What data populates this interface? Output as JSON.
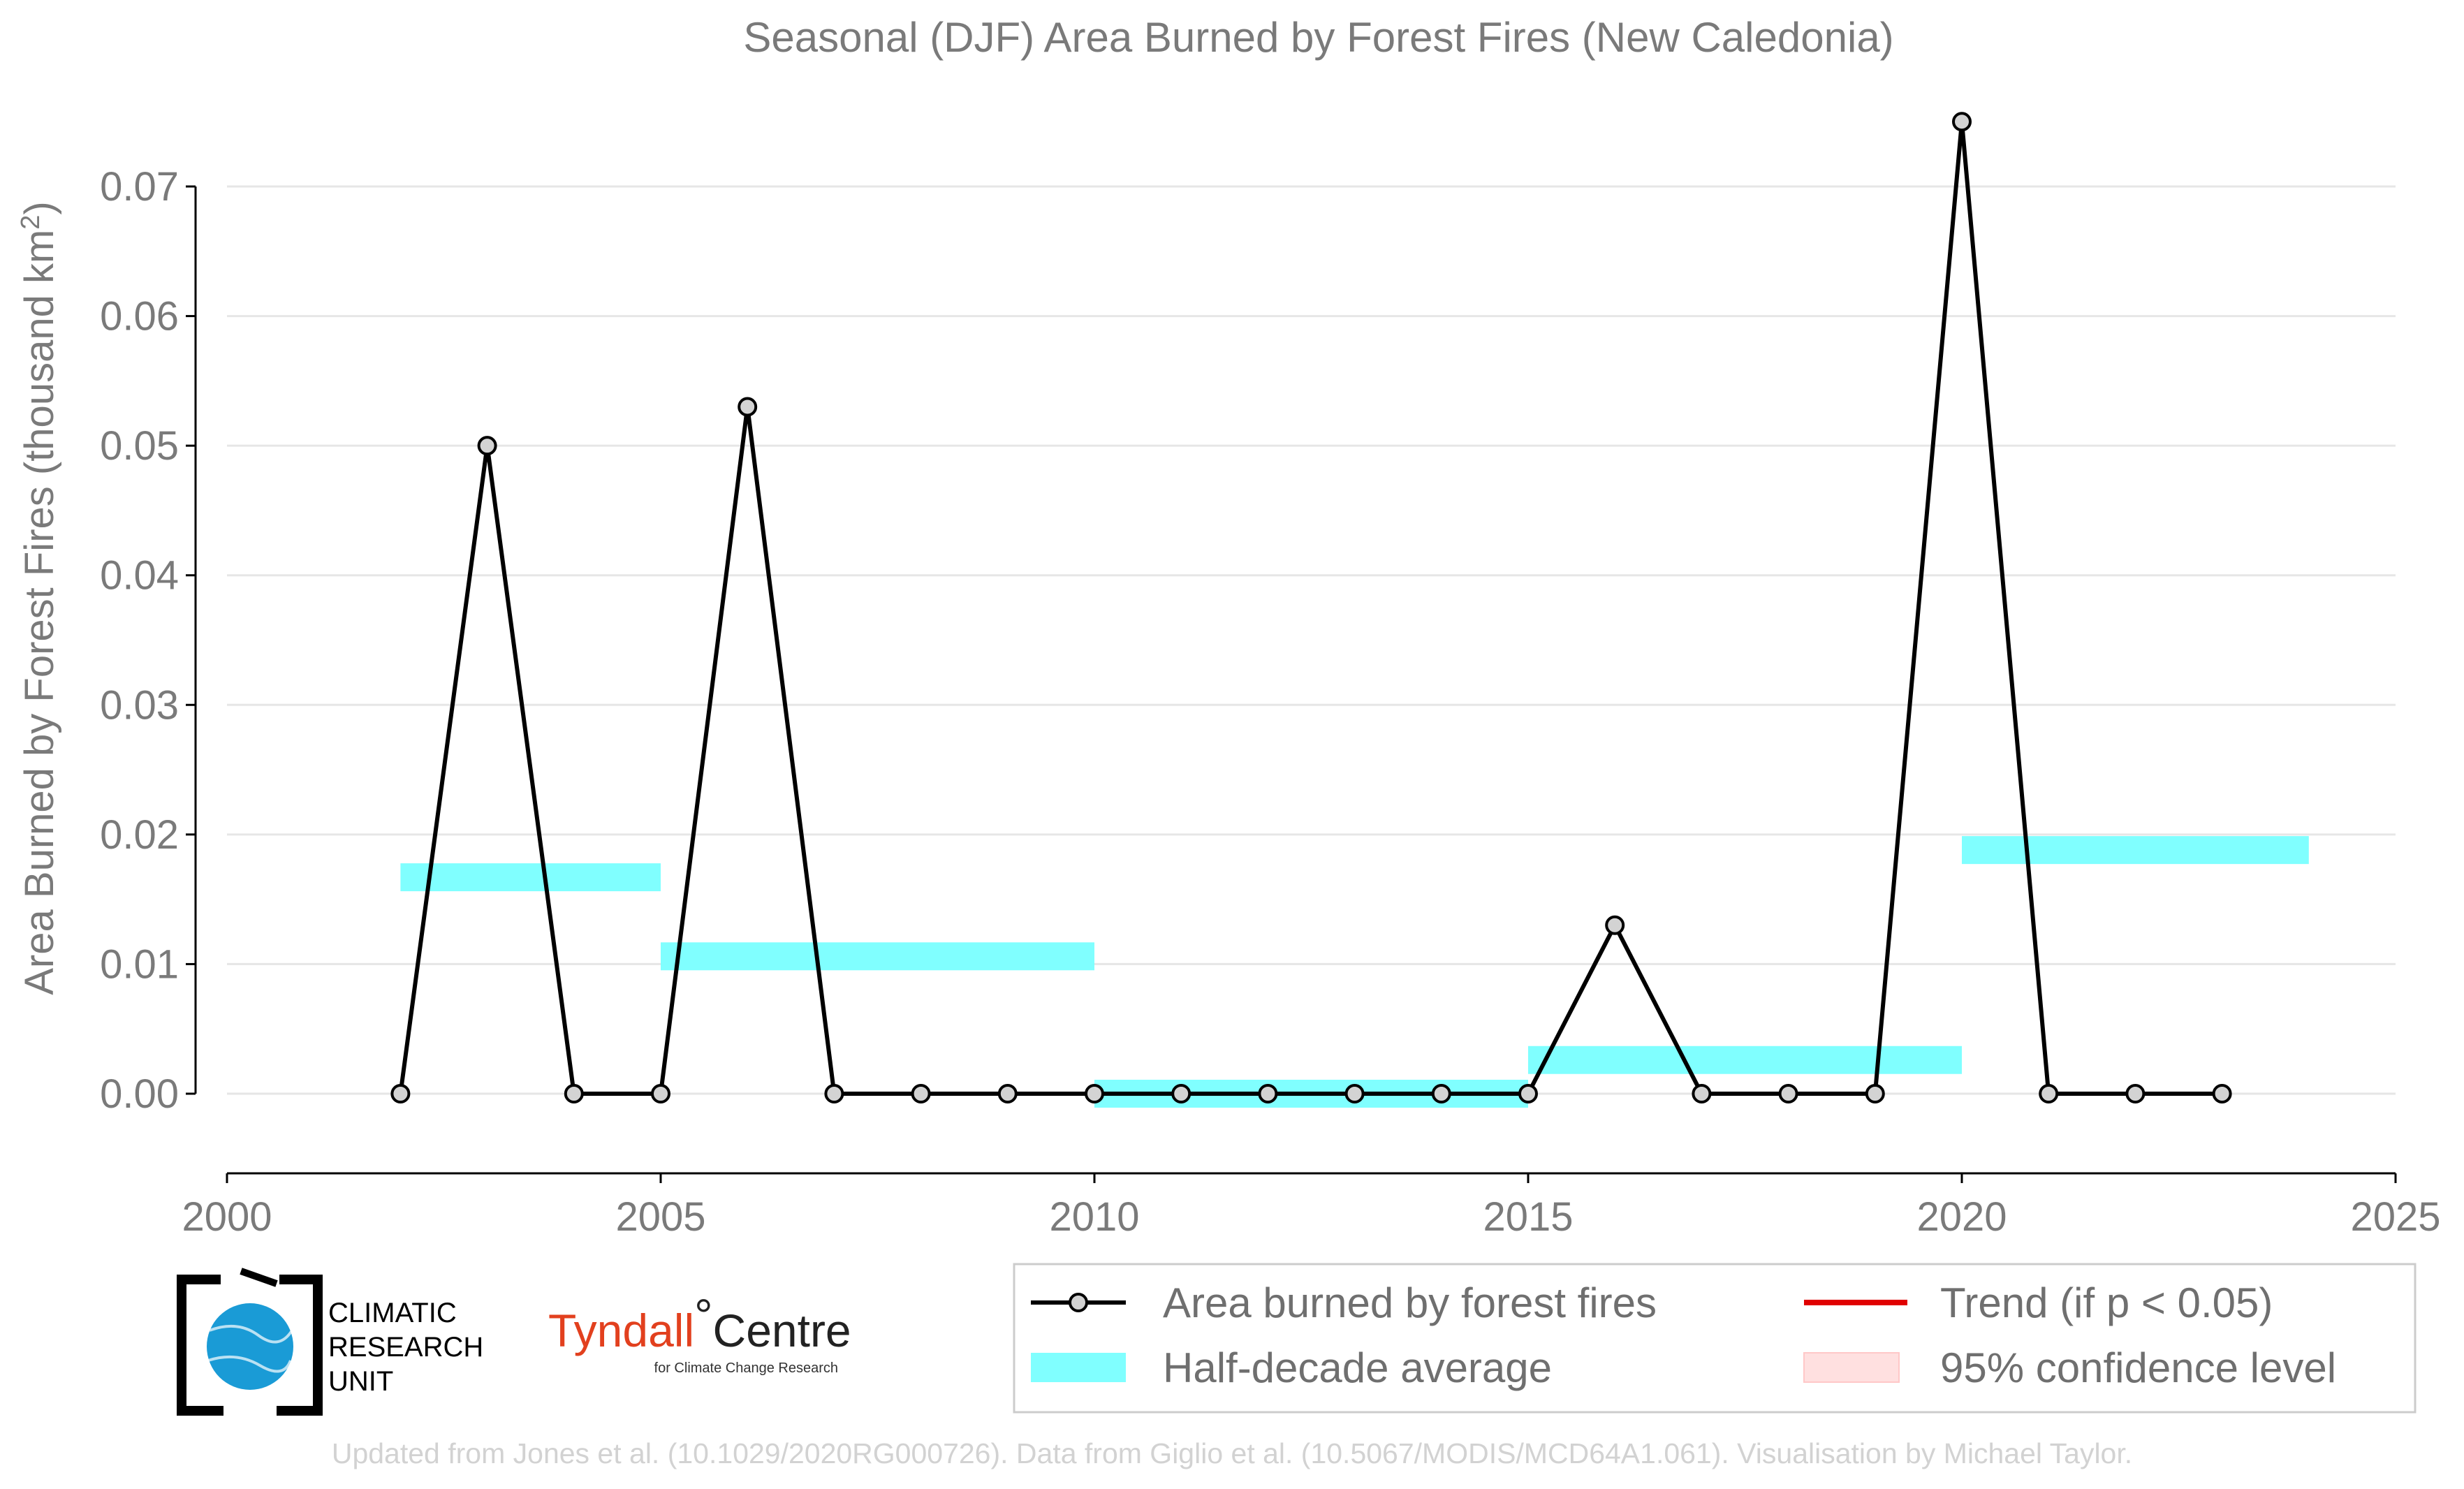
{
  "chart_data": {
    "type": "line",
    "title": "Seasonal (DJF) Area Burned by Forest Fires (New Caledonia)",
    "ylabel": "Area Burned by Forest Fires (thousand km²)",
    "xlabel": "",
    "xlim": [
      2000,
      2025
    ],
    "ylim": [
      -0.006,
      0.075
    ],
    "x_ticks": [
      "2000",
      "2005",
      "2010",
      "2015",
      "2020",
      "2025"
    ],
    "y_ticks": [
      "0.00",
      "0.01",
      "0.02",
      "0.03",
      "0.04",
      "0.05",
      "0.06",
      "0.07"
    ],
    "grid": "horizontal",
    "series": [
      {
        "name": "Area burned by forest fires",
        "color": "#000000",
        "marker_fill": "#d3d3d3",
        "x": [
          2002,
          2003,
          2004,
          2005,
          2006,
          2007,
          2008,
          2009,
          2010,
          2011,
          2012,
          2013,
          2014,
          2015,
          2016,
          2017,
          2018,
          2019,
          2020,
          2021,
          2022,
          2023
        ],
        "y": [
          0.0,
          0.05,
          0.0,
          0.0,
          0.053,
          0.0,
          0.0,
          0.0,
          0.0,
          0.0,
          0.0,
          0.0,
          0.0,
          0.0,
          0.013,
          0.0,
          0.0,
          0.0,
          0.075,
          0.0,
          0.0,
          0.0
        ]
      }
    ],
    "half_decade_average": {
      "name": "Half-decade average",
      "color": "#80ffff",
      "segments": [
        {
          "x_start": 2002,
          "x_end": 2005,
          "value": 0.0167
        },
        {
          "x_start": 2005,
          "x_end": 2010,
          "value": 0.0106
        },
        {
          "x_start": 2010,
          "x_end": 2015,
          "value": 0.0
        },
        {
          "x_start": 2015,
          "x_end": 2020,
          "value": 0.0026
        },
        {
          "x_start": 2020,
          "x_end": 2024,
          "value": 0.0188
        }
      ]
    },
    "legend": {
      "placement": "bottom-right",
      "entries": [
        {
          "label": "Area burned by forest fires",
          "kind": "line-marker",
          "color": "#000000"
        },
        {
          "label": "Trend (if p < 0.05)",
          "kind": "line",
          "color": "#e00000"
        },
        {
          "label": "Half-decade average",
          "kind": "band",
          "color": "#80ffff"
        },
        {
          "label": "95% confidence level",
          "kind": "band",
          "color": "#ffe0e0"
        }
      ]
    }
  },
  "logos": {
    "cru": [
      "CLIMATIC",
      "RESEARCH",
      "UNIT"
    ],
    "tyndall": {
      "name": "Tyndall",
      "degree": "°",
      "centre": "Centre",
      "subtitle": "for Climate Change Research"
    }
  },
  "credit": "Updated from Jones et al. (10.1029/2020RG000726). Data from Giglio et al. (10.5067/MODIS/MCD64A1.061). Visualisation by Michael Taylor."
}
